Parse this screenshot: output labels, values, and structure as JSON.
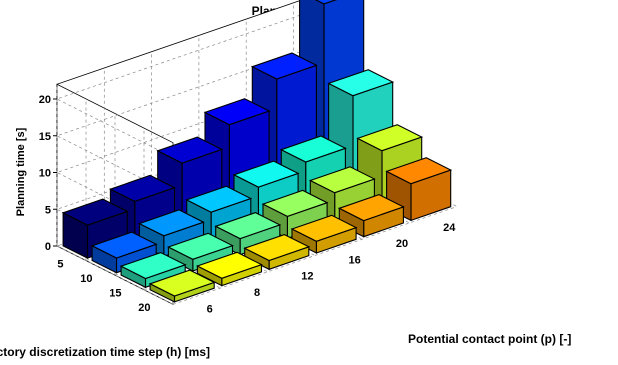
{
  "chart_data": {
    "type": "bar3d",
    "title": "Planning time [s]",
    "xlabel": "Potential contact point (p) [-]",
    "ylabel": "Trajectory discretization time step (h) [ms]",
    "zlabel": "Planning time [s]",
    "x_categories": [
      "6",
      "8",
      "12",
      "16",
      "20",
      "24"
    ],
    "y_categories": [
      "5",
      "10",
      "15",
      "20"
    ],
    "z_ticks": [
      "0",
      "5",
      "10",
      "15",
      "20"
    ],
    "zlim": [
      0,
      22
    ],
    "grid": true,
    "colormap": "jet",
    "values": [
      [
        4.5,
        5.5,
        8.5,
        11.5,
        15.5,
        23.5
      ],
      [
        2.0,
        2.8,
        3.8,
        5.0,
        6.2,
        13.0
      ],
      [
        1.2,
        1.6,
        2.2,
        3.0,
        4.0,
        7.5
      ],
      [
        0.8,
        1.0,
        1.2,
        1.6,
        2.2,
        5.0
      ]
    ],
    "colors": [
      [
        "#00007f",
        "#0000a8",
        "#0000d2",
        "#0000f8",
        "#0020ff",
        "#0044ff"
      ],
      [
        "#0060ff",
        "#0098ff",
        "#00c8ff",
        "#10f8f0",
        "#18ffd8",
        "#28ffe8"
      ],
      [
        "#30ffc8",
        "#48ffb0",
        "#60ff98",
        "#98ff60",
        "#b8ff40",
        "#d0ff28"
      ],
      [
        "#d8ff20",
        "#ffff00",
        "#ffe000",
        "#ffc000",
        "#ffa400",
        "#ff8800"
      ]
    ]
  }
}
